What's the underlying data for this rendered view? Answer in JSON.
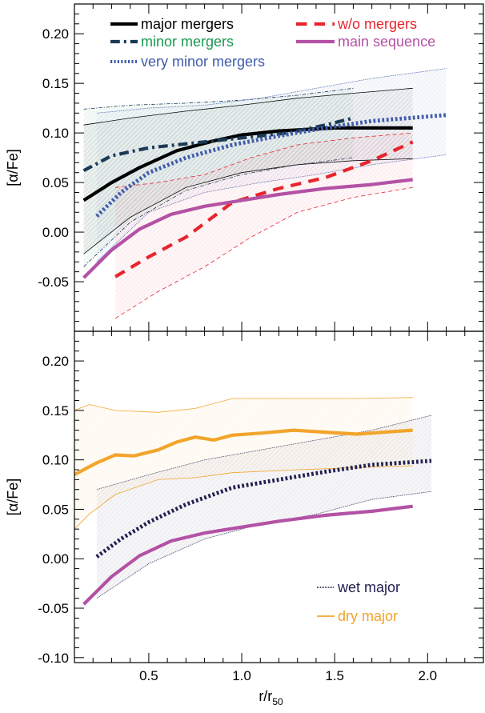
{
  "chart_data": [
    {
      "type": "line",
      "xlabel": "",
      "ylabel": "[α/Fe]",
      "xlim": [
        0.1,
        2.3
      ],
      "ylim": [
        -0.1,
        0.23
      ],
      "x_ticks": [
        "0.5",
        "1.0",
        "1.5",
        "2.0"
      ],
      "y_ticks": [
        "-0.05",
        "0.00",
        "0.05",
        "0.10",
        "0.15",
        "0.20"
      ],
      "legend_placement": "top",
      "series": [
        {
          "name": "major mergers",
          "color": "#000000",
          "dash": "solid",
          "x": [
            0.15,
            0.3,
            0.45,
            0.65,
            0.85,
            1.0,
            1.2,
            1.5,
            1.92
          ],
          "y": [
            0.032,
            0.05,
            0.065,
            0.082,
            0.092,
            0.098,
            0.102,
            0.105,
            0.105
          ],
          "band": {
            "x": [
              0.15,
              0.4,
              0.7,
              1.0,
              1.3,
              1.6,
              1.92
            ],
            "upper": [
              0.108,
              0.115,
              0.122,
              0.128,
              0.135,
              0.14,
              0.145
            ],
            "lower": [
              -0.022,
              0.015,
              0.045,
              0.06,
              0.068,
              0.072,
              0.074
            ]
          }
        },
        {
          "name": "minor mergers",
          "color": "#1a9a50",
          "line_color": "#1a3a56",
          "dash": "dashdot",
          "x": [
            0.15,
            0.3,
            0.5,
            0.75,
            1.0,
            1.25,
            1.45,
            1.6
          ],
          "y": [
            0.062,
            0.077,
            0.085,
            0.09,
            0.095,
            0.1,
            0.108,
            0.115
          ],
          "band": {
            "x": [
              0.15,
              0.4,
              0.7,
              1.0,
              1.3,
              1.6
            ],
            "upper": [
              0.124,
              0.128,
              0.13,
              0.133,
              0.138,
              0.145
            ],
            "lower": [
              -0.035,
              0.01,
              0.042,
              0.058,
              0.068,
              0.075
            ]
          }
        },
        {
          "name": "very minor mergers",
          "color": "#3f5bab",
          "dash": "dotted",
          "x": [
            0.22,
            0.35,
            0.5,
            0.7,
            0.95,
            1.2,
            1.45,
            1.7,
            2.1
          ],
          "y": [
            0.016,
            0.04,
            0.06,
            0.075,
            0.088,
            0.097,
            0.105,
            0.112,
            0.118
          ],
          "band": {
            "x": [
              0.22,
              0.5,
              0.8,
              1.1,
              1.4,
              1.7,
              2.1
            ],
            "upper": [
              0.12,
              0.125,
              0.128,
              0.135,
              0.145,
              0.155,
              0.165
            ],
            "lower": [
              -0.03,
              0.02,
              0.04,
              0.05,
              0.058,
              0.068,
              0.078
            ]
          }
        },
        {
          "name": "w/o mergers",
          "color": "#e8242c",
          "dash": "dashed",
          "x": [
            0.32,
            0.5,
            0.7,
            0.95,
            1.2,
            1.45,
            1.7,
            1.92
          ],
          "y": [
            -0.045,
            -0.025,
            -0.005,
            0.03,
            0.044,
            0.055,
            0.072,
            0.091
          ],
          "band": {
            "x": [
              0.32,
              0.55,
              0.8,
              1.05,
              1.3,
              1.6,
              1.92
            ],
            "upper": [
              0.045,
              0.05,
              0.058,
              0.075,
              0.088,
              0.095,
              0.1
            ],
            "lower": [
              -0.087,
              -0.06,
              -0.035,
              -0.005,
              0.02,
              0.035,
              0.045
            ]
          }
        },
        {
          "name": "main sequence",
          "color": "#b352a4",
          "dash": "solid",
          "x": [
            0.15,
            0.3,
            0.45,
            0.62,
            0.8,
            1.0,
            1.2,
            1.45,
            1.7,
            1.92
          ],
          "y": [
            -0.046,
            -0.018,
            0.003,
            0.018,
            0.026,
            0.032,
            0.038,
            0.044,
            0.048,
            0.053
          ]
        }
      ]
    },
    {
      "type": "line",
      "xlabel": "r/r",
      "xlabel_subscript": "50",
      "ylabel": "[α/Fe]",
      "xlim": [
        0.1,
        2.3
      ],
      "ylim": [
        -0.105,
        0.23
      ],
      "x_ticks": [
        "0.5",
        "1.0",
        "1.5",
        "2.0"
      ],
      "y_ticks": [
        "-0.10",
        "-0.05",
        "0.00",
        "0.05",
        "0.10",
        "0.15",
        "0.20"
      ],
      "legend_placement": "bottom-right",
      "series": [
        {
          "name": "wet major",
          "color": "#202050",
          "dash": "dotted",
          "x": [
            0.22,
            0.35,
            0.5,
            0.7,
            0.95,
            1.2,
            1.45,
            1.7,
            2.02
          ],
          "y": [
            0.002,
            0.02,
            0.037,
            0.055,
            0.072,
            0.08,
            0.088,
            0.095,
            0.099
          ],
          "band": {
            "x": [
              0.22,
              0.5,
              0.8,
              1.1,
              1.4,
              1.7,
              2.02
            ],
            "upper": [
              0.07,
              0.085,
              0.1,
              0.11,
              0.12,
              0.13,
              0.145
            ],
            "lower": [
              -0.04,
              -0.005,
              0.02,
              0.035,
              0.045,
              0.06,
              0.068
            ]
          }
        },
        {
          "name": "dry major",
          "color": "#f2a52b",
          "dash": "solid",
          "x": [
            0.1,
            0.15,
            0.22,
            0.32,
            0.42,
            0.55,
            0.65,
            0.75,
            0.85,
            0.95,
            1.1,
            1.28,
            1.45,
            1.62,
            1.92
          ],
          "y": [
            0.085,
            0.09,
            0.097,
            0.105,
            0.104,
            0.11,
            0.118,
            0.123,
            0.12,
            0.125,
            0.127,
            0.13,
            0.128,
            0.126,
            0.13
          ],
          "band": {
            "x": [
              0.1,
              0.18,
              0.32,
              0.55,
              0.75,
              0.95,
              1.3,
              1.6,
              1.92
            ],
            "upper": [
              0.15,
              0.156,
              0.15,
              0.148,
              0.152,
              0.162,
              0.162,
              0.162,
              0.163
            ],
            "lower": [
              0.03,
              0.045,
              0.065,
              0.08,
              0.082,
              0.087,
              0.09,
              0.092,
              0.094
            ]
          }
        },
        {
          "name": "main sequence",
          "color": "#b352a4",
          "dash": "solid",
          "x": [
            0.15,
            0.3,
            0.45,
            0.62,
            0.8,
            1.0,
            1.2,
            1.45,
            1.7,
            1.92
          ],
          "y": [
            -0.046,
            -0.018,
            0.003,
            0.018,
            0.026,
            0.032,
            0.038,
            0.044,
            0.048,
            0.053
          ]
        }
      ]
    }
  ]
}
